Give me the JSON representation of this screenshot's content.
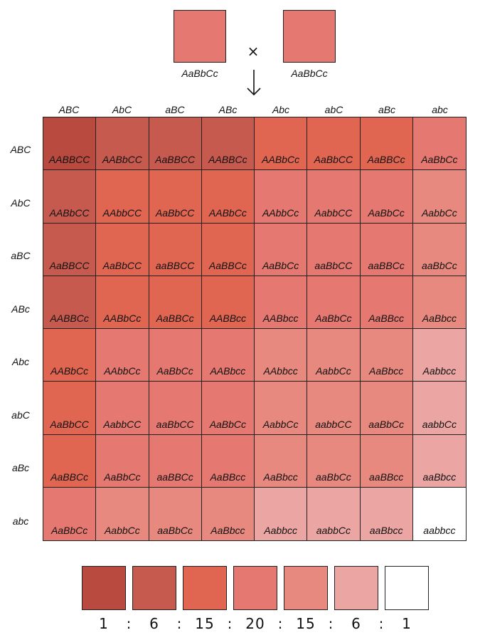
{
  "parents": [
    {
      "genotype": "AaBbCc",
      "color": "#e57870"
    },
    {
      "genotype": "AaBbCc",
      "color": "#e57870"
    }
  ],
  "cross_symbol": "×",
  "gametes_cols": [
    "ABC",
    "AbC",
    "aBC",
    "ABc",
    "Abc",
    "abC",
    "aBc",
    "abc"
  ],
  "gametes_rows": [
    "ABC",
    "AbC",
    "aBC",
    "ABc",
    "Abc",
    "abC",
    "aBc",
    "abc"
  ],
  "palette": [
    "#b84a3f",
    "#c75a4f",
    "#e06652",
    "#e57870",
    "#e8897f",
    "#eba6a4",
    "#ffffff"
  ],
  "cells": [
    [
      {
        "g": "AABBCC",
        "d": 0
      },
      {
        "g": "AABbCC",
        "d": 1
      },
      {
        "g": "AaBBCC",
        "d": 1
      },
      {
        "g": "AABBCc",
        "d": 1
      },
      {
        "g": "AABbCc",
        "d": 2
      },
      {
        "g": "AaBbCC",
        "d": 2
      },
      {
        "g": "AaBBCc",
        "d": 2
      },
      {
        "g": "AaBbCc",
        "d": 3
      }
    ],
    [
      {
        "g": "AABbCC",
        "d": 1
      },
      {
        "g": "AAbbCC",
        "d": 2
      },
      {
        "g": "AaBbCC",
        "d": 2
      },
      {
        "g": "AABbCc",
        "d": 2
      },
      {
        "g": "AAbbCc",
        "d": 3
      },
      {
        "g": "AabbCC",
        "d": 3
      },
      {
        "g": "AaBbCc",
        "d": 3
      },
      {
        "g": "AabbCc",
        "d": 4
      }
    ],
    [
      {
        "g": "AaBBCC",
        "d": 1
      },
      {
        "g": "AaBbCC",
        "d": 2
      },
      {
        "g": "aaBBCC",
        "d": 2
      },
      {
        "g": "AaBBCc",
        "d": 2
      },
      {
        "g": "AaBbCc",
        "d": 3
      },
      {
        "g": "aaBbCC",
        "d": 3
      },
      {
        "g": "aaBBCc",
        "d": 3
      },
      {
        "g": "aaBbCc",
        "d": 4
      }
    ],
    [
      {
        "g": "AABBCc",
        "d": 1
      },
      {
        "g": "AABbCc",
        "d": 2
      },
      {
        "g": "AaBBCc",
        "d": 2
      },
      {
        "g": "AABBcc",
        "d": 2
      },
      {
        "g": "AABbcc",
        "d": 3
      },
      {
        "g": "AaBbCc",
        "d": 3
      },
      {
        "g": "AaBBcc",
        "d": 3
      },
      {
        "g": "AaBbcc",
        "d": 4
      }
    ],
    [
      {
        "g": "AABbCc",
        "d": 2
      },
      {
        "g": "AAbbCc",
        "d": 3
      },
      {
        "g": "AaBbCc",
        "d": 3
      },
      {
        "g": "AABbcc",
        "d": 3
      },
      {
        "g": "AAbbcc",
        "d": 4
      },
      {
        "g": "AabbCc",
        "d": 4
      },
      {
        "g": "AaBbcc",
        "d": 4
      },
      {
        "g": "Aabbcc",
        "d": 5
      }
    ],
    [
      {
        "g": "AaBbCC",
        "d": 2
      },
      {
        "g": "AabbCC",
        "d": 3
      },
      {
        "g": "aaBbCC",
        "d": 3
      },
      {
        "g": "AaBbCc",
        "d": 3
      },
      {
        "g": "AabbCc",
        "d": 4
      },
      {
        "g": "aabbCC",
        "d": 4
      },
      {
        "g": "aaBbCc",
        "d": 4
      },
      {
        "g": "aabbCc",
        "d": 5
      }
    ],
    [
      {
        "g": "AaBBCc",
        "d": 2
      },
      {
        "g": "AaBbCc",
        "d": 3
      },
      {
        "g": "aaBBCc",
        "d": 3
      },
      {
        "g": "AaBBcc",
        "d": 3
      },
      {
        "g": "AaBbcc",
        "d": 4
      },
      {
        "g": "aaBbCc",
        "d": 4
      },
      {
        "g": "aaBBcc",
        "d": 4
      },
      {
        "g": "aaBbcc",
        "d": 5
      }
    ],
    [
      {
        "g": "AaBbCc",
        "d": 3
      },
      {
        "g": "AabbCc",
        "d": 4
      },
      {
        "g": "aaBbCc",
        "d": 4
      },
      {
        "g": "AaBbcc",
        "d": 4
      },
      {
        "g": "Aabbcc",
        "d": 5
      },
      {
        "g": "aabbCc",
        "d": 5
      },
      {
        "g": "aaBbcc",
        "d": 5
      },
      {
        "g": "aabbcc",
        "d": 6
      }
    ]
  ],
  "ratio": [
    "1",
    ":",
    "6",
    ":",
    "15",
    ":",
    "20",
    ":",
    "15",
    ":",
    "6",
    ":",
    "1"
  ]
}
